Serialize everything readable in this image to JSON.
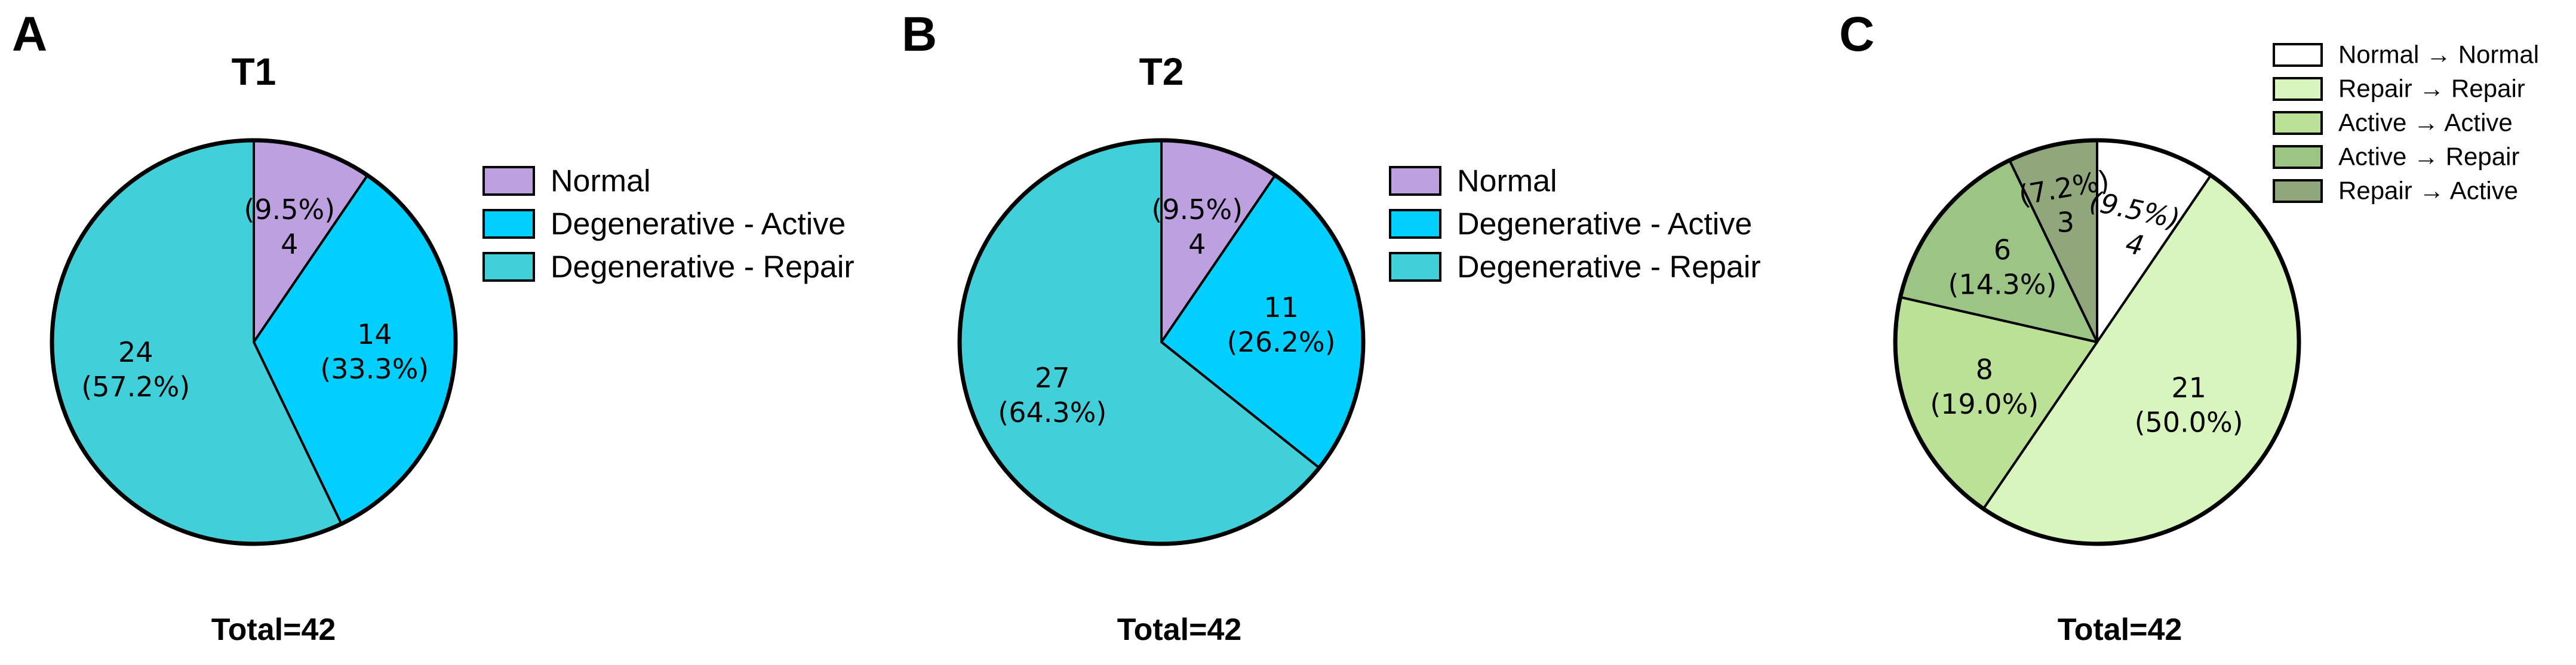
{
  "chart_data": [
    {
      "type": "pie",
      "panel": "A",
      "title": "T1",
      "total_label": "Total=42",
      "total": 42,
      "slices": [
        {
          "label": "Normal",
          "value": 4,
          "percent": "(9.5%)",
          "color": "#BDA0E0"
        },
        {
          "label": "Degenerative - Active",
          "value": 14,
          "percent": "(33.3%)",
          "color": "#00CFFF"
        },
        {
          "label": "Degenerative - Repair",
          "value": 24,
          "percent": "(57.2%)",
          "color": "#41D0DA"
        }
      ],
      "legend": [
        "Normal",
        "Degenerative - Active",
        "Degenerative - Repair"
      ],
      "legend_position": "right"
    },
    {
      "type": "pie",
      "panel": "B",
      "title": "T2",
      "total_label": "Total=42",
      "total": 42,
      "slices": [
        {
          "label": "Normal",
          "value": 4,
          "percent": "(9.5%)",
          "color": "#BDA0E0"
        },
        {
          "label": "Degenerative - Active",
          "value": 11,
          "percent": "(26.2%)",
          "color": "#00CFFF"
        },
        {
          "label": "Degenerative - Repair",
          "value": 27,
          "percent": "(64.3%)",
          "color": "#41D0DA"
        }
      ],
      "legend": [
        "Normal",
        "Degenerative - Active",
        "Degenerative - Repair"
      ],
      "legend_position": "right"
    },
    {
      "type": "pie",
      "panel": "C",
      "title": "",
      "total_label": "Total=42",
      "total": 42,
      "slices": [
        {
          "label": "Normal → Normal",
          "value": 4,
          "percent": "(9.5%)",
          "color": "#FFFFFF"
        },
        {
          "label": "Repair → Repair",
          "value": 21,
          "percent": "(50.0%)",
          "color": "#D8F5BE"
        },
        {
          "label": "Active → Active",
          "value": 8,
          "percent": "(19.0%)",
          "color": "#BAE196"
        },
        {
          "label": "Active → Repair",
          "value": 6,
          "percent": "(14.3%)",
          "color": "#9CC484"
        },
        {
          "label": "Repair → Active",
          "value": 3,
          "percent": "(7.2%)",
          "color": "#8FA77A"
        }
      ],
      "legend": [
        "Normal → Normal",
        "Repair → Repair",
        "Active → Active",
        "Active → Repair",
        "Repair → Active"
      ],
      "legend_position": "top-right"
    }
  ]
}
